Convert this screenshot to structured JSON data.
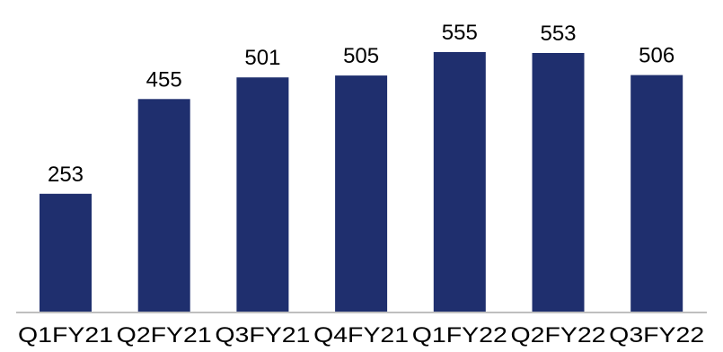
{
  "chart_data": {
    "type": "bar",
    "title": "",
    "xlabel": "",
    "ylabel": "",
    "categories": [
      "Q1FY21",
      "Q2FY21",
      "Q3FY21",
      "Q4FY21",
      "Q1FY22",
      "Q2FY22",
      "Q3FY22"
    ],
    "values": [
      253,
      455,
      501,
      505,
      555,
      553,
      506
    ],
    "ylim": [
      0,
      555
    ],
    "grid": false,
    "bar_color": "#1f2f6e",
    "axis_color": "#bfbfbf",
    "data_labels": true
  }
}
